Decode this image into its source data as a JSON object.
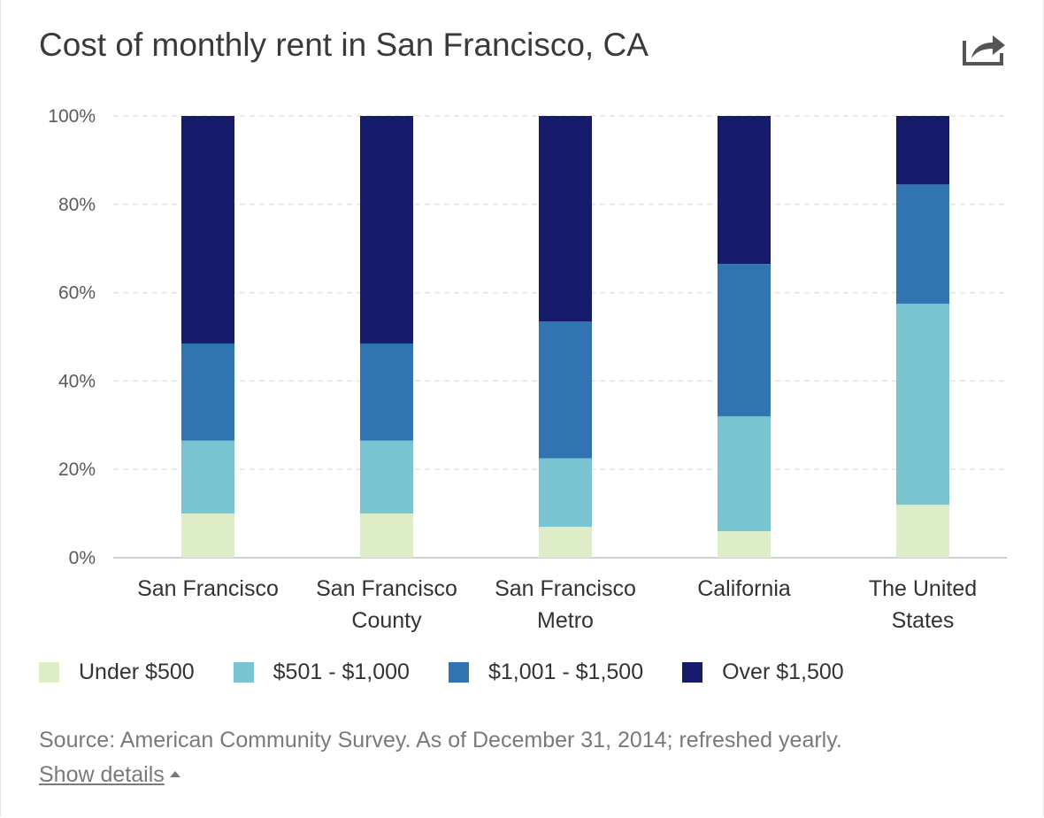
{
  "header": {
    "title": "Cost of monthly rent in San Francisco, CA",
    "share_icon": "share-arrow-icon"
  },
  "chart_data": {
    "type": "bar",
    "stacked": true,
    "categories": [
      [
        "San Francisco"
      ],
      [
        "San Francisco",
        "County"
      ],
      [
        "San Francisco",
        "Metro"
      ],
      [
        "California"
      ],
      [
        "The United",
        "States"
      ]
    ],
    "series": [
      {
        "name": "Under $500",
        "color": "#dcedc8",
        "values": [
          10,
          10,
          7,
          6,
          12
        ]
      },
      {
        "name": "$501 - $1,000",
        "color": "#78c4d0",
        "values": [
          16.5,
          16.5,
          15.5,
          26,
          45.5
        ]
      },
      {
        "name": "$1,001 - $1,500",
        "color": "#3074b2",
        "values": [
          22,
          22,
          31,
          34.5,
          27
        ]
      },
      {
        "name": "Over $1,500",
        "color": "#161c6b",
        "values": [
          51.5,
          51.5,
          46.5,
          33.5,
          15.5
        ]
      }
    ],
    "y_ticks": [
      "0%",
      "20%",
      "40%",
      "60%",
      "80%",
      "100%"
    ],
    "ylim": [
      0,
      100
    ],
    "grid": true,
    "legend_position": "bottom"
  },
  "footer": {
    "source": "Source: American Community Survey. As of December 31, 2014; refreshed yearly.",
    "details_link": "Show details"
  }
}
